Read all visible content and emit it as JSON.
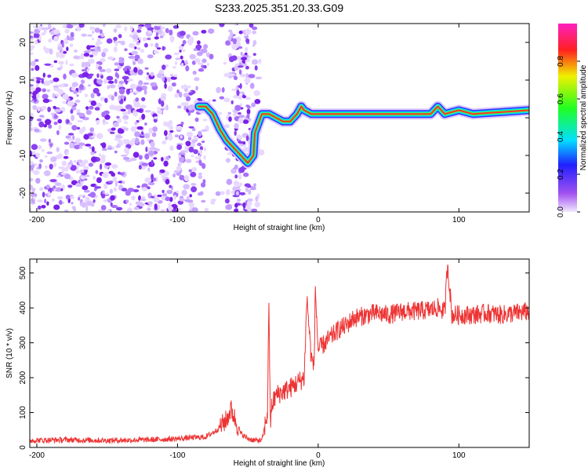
{
  "title": "S233.2025.351.20.33.G09",
  "chart_data": [
    {
      "type": "heatmap",
      "name": "spectrogram",
      "xlabel": "Height of straight line (km)",
      "ylabel": "Frequency (Hz)",
      "xlim": [
        -205,
        150
      ],
      "ylim": [
        -25,
        25
      ],
      "xticks": [
        -200,
        -100,
        0,
        100
      ],
      "yticks": [
        -20,
        -10,
        0,
        10,
        20
      ],
      "ridge": {
        "description_points": [
          [
            -85,
            3
          ],
          [
            -80,
            3
          ],
          [
            -75,
            1
          ],
          [
            -70,
            -3
          ],
          [
            -65,
            -6
          ],
          [
            -60,
            -8
          ],
          [
            -55,
            -10
          ],
          [
            -50,
            -12
          ],
          [
            -46,
            -10
          ],
          [
            -45,
            -4
          ],
          [
            -40,
            1
          ],
          [
            -35,
            1
          ],
          [
            -30,
            0
          ],
          [
            -25,
            -1
          ],
          [
            -20,
            -1
          ],
          [
            -15,
            1
          ],
          [
            -12,
            3
          ],
          [
            -10,
            2
          ],
          [
            -5,
            1
          ],
          [
            0,
            1
          ],
          [
            20,
            1
          ],
          [
            40,
            1
          ],
          [
            60,
            1
          ],
          [
            80,
            1
          ],
          [
            85,
            3
          ],
          [
            90,
            1
          ],
          [
            100,
            2
          ],
          [
            110,
            1
          ],
          [
            150,
            2
          ]
        ]
      },
      "colorbar": {
        "label": "Normalized spectral amplitude",
        "range": [
          0.0,
          1.0
        ],
        "ticks": [
          "0.0",
          "0.2",
          "0.4",
          "0.6",
          "0.8"
        ]
      }
    },
    {
      "type": "line",
      "name": "snr",
      "xlabel": "Height of straight line (km)",
      "ylabel": "SNR (10 * v/v)",
      "xlim": [
        -205,
        150
      ],
      "ylim": [
        0,
        540
      ],
      "xticks": [
        -200,
        -100,
        0,
        100
      ],
      "yticks": [
        0,
        100,
        200,
        300,
        400,
        500
      ],
      "color": "#ee3333",
      "series": [
        {
          "name": "SNR",
          "x": [
            -205,
            -180,
            -150,
            -120,
            -100,
            -90,
            -80,
            -72,
            -65,
            -62,
            -60,
            -55,
            -50,
            -45,
            -40,
            -36,
            -35,
            -34,
            -33,
            -30,
            -25,
            -20,
            -15,
            -10,
            -8,
            -5,
            -3,
            -2,
            0,
            5,
            10,
            15,
            20,
            25,
            30,
            35,
            40,
            50,
            60,
            70,
            80,
            85,
            90,
            92,
            95,
            100,
            110,
            120,
            130,
            140,
            150
          ],
          "y": [
            20,
            22,
            20,
            22,
            25,
            28,
            30,
            50,
            80,
            110,
            90,
            40,
            25,
            20,
            20,
            100,
            430,
            60,
            120,
            150,
            160,
            170,
            185,
            200,
            430,
            260,
            230,
            450,
            280,
            300,
            320,
            340,
            350,
            370,
            375,
            380,
            385,
            380,
            390,
            390,
            395,
            400,
            390,
            530,
            380,
            380,
            380,
            385,
            380,
            385,
            390
          ]
        }
      ]
    }
  ]
}
